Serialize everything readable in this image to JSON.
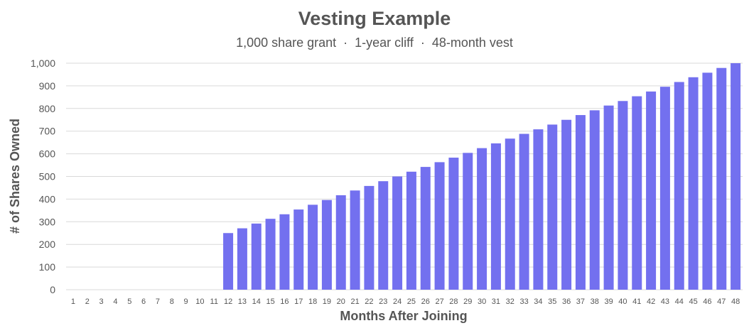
{
  "chart_data": {
    "type": "bar",
    "title": "Vesting Example",
    "subtitle": "1,000 share grant  ·  1-year cliff  ·  48-month vest",
    "xlabel": "Months After Joining",
    "ylabel": "# of Shares Owned",
    "ylim": [
      0,
      1000
    ],
    "yticks": [
      0,
      100,
      200,
      300,
      400,
      500,
      600,
      700,
      800,
      900,
      1000
    ],
    "ytick_labels": [
      "0",
      "100",
      "200",
      "300",
      "400",
      "500",
      "600",
      "700",
      "800",
      "900",
      "1,000"
    ],
    "grid": true,
    "legend": "none",
    "bar_color": "#7370ef",
    "categories": [
      "1",
      "2",
      "3",
      "4",
      "5",
      "6",
      "7",
      "8",
      "9",
      "10",
      "11",
      "12",
      "13",
      "14",
      "15",
      "16",
      "17",
      "18",
      "19",
      "20",
      "21",
      "22",
      "23",
      "24",
      "25",
      "26",
      "27",
      "28",
      "29",
      "30",
      "31",
      "32",
      "33",
      "34",
      "35",
      "36",
      "37",
      "38",
      "39",
      "40",
      "41",
      "42",
      "43",
      "44",
      "45",
      "46",
      "47",
      "48"
    ],
    "values": [
      0,
      0,
      0,
      0,
      0,
      0,
      0,
      0,
      0,
      0,
      0,
      250,
      271,
      292,
      313,
      333,
      354,
      375,
      396,
      417,
      438,
      458,
      479,
      500,
      521,
      542,
      563,
      583,
      604,
      625,
      646,
      667,
      688,
      708,
      729,
      750,
      771,
      792,
      813,
      833,
      854,
      875,
      896,
      917,
      938,
      958,
      979,
      1000
    ]
  }
}
